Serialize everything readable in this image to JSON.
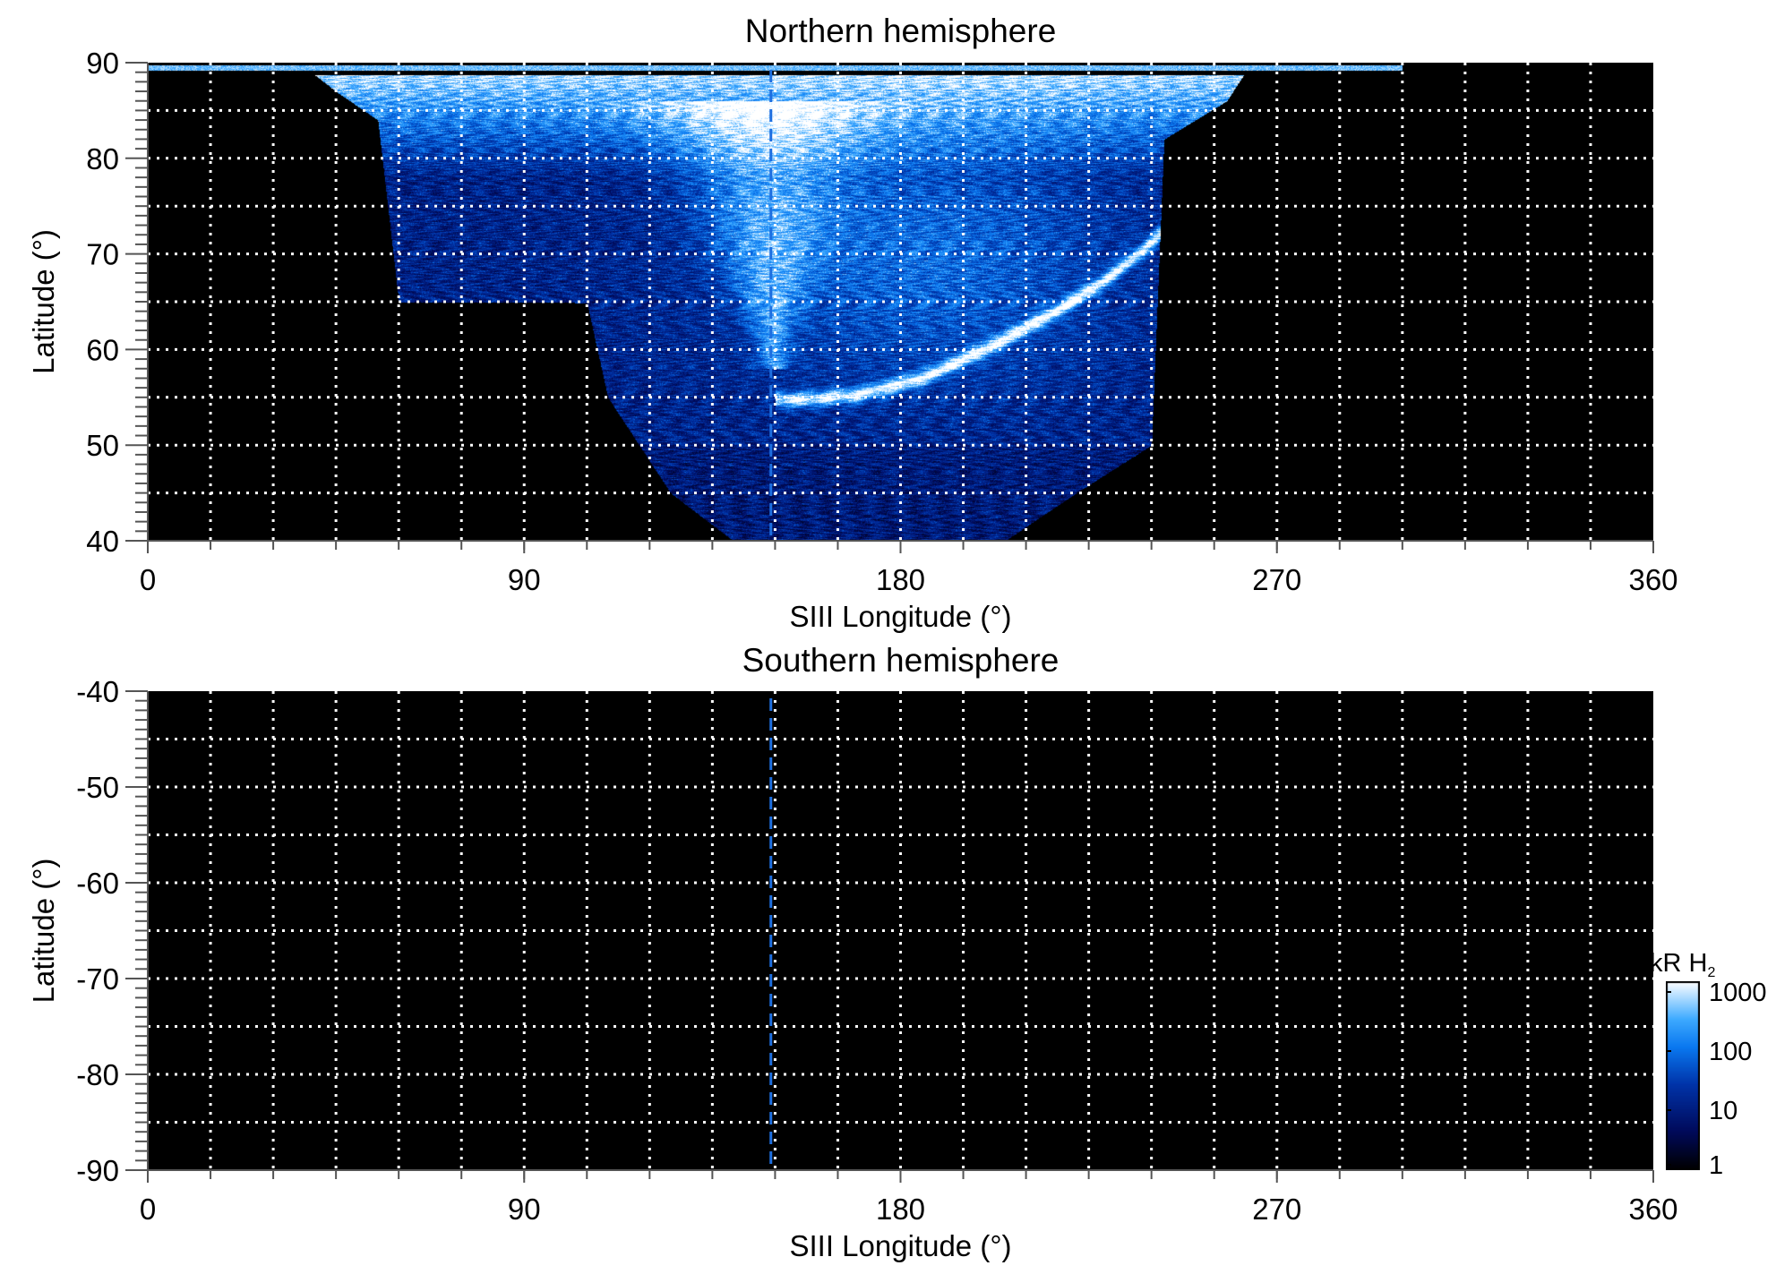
{
  "chart_data": [
    {
      "type": "heatmap",
      "title": "Northern hemisphere",
      "xlabel": "SIII Longitude (°)",
      "ylabel": "Latitude (°)",
      "xlim": [
        0,
        360
      ],
      "ylim": [
        40,
        90
      ],
      "xticks": [
        0,
        90,
        180,
        270,
        360
      ],
      "yticks": [
        40,
        50,
        60,
        70,
        80,
        90
      ],
      "grid": {
        "on": true,
        "style": "dotted",
        "color": "#ffffff",
        "x_step": 15,
        "y_step": 5
      },
      "background": "#000000",
      "reference_line": {
        "longitude": 149,
        "style": "dashed",
        "color": "#1e6fe0"
      },
      "emission": "auroral oval, bright near pole and main arc from ~160°/55° to ~240°/70°"
    },
    {
      "type": "heatmap",
      "title": "Southern hemisphere",
      "xlabel": "SIII Longitude (°)",
      "ylabel": "Latitude (°)",
      "xlim": [
        0,
        360
      ],
      "ylim": [
        -90,
        -40
      ],
      "xticks": [
        0,
        90,
        180,
        270,
        360
      ],
      "yticks": [
        -90,
        -80,
        -70,
        -60,
        -50,
        -40
      ],
      "grid": {
        "on": true,
        "style": "dotted",
        "color": "#ffffff",
        "x_step": 15,
        "y_step": 5
      },
      "background": "#000000",
      "reference_line": {
        "longitude": 149,
        "style": "dashed",
        "color": "#1e6fe0"
      },
      "emission": "none"
    }
  ],
  "colorbar": {
    "label": "kR H",
    "label_subscript": "2",
    "scale": "log",
    "range": [
      1,
      1000
    ],
    "ticks": [
      "1",
      "10",
      "100",
      "1000"
    ],
    "colors": [
      "#000000",
      "#000a5a",
      "#0033a8",
      "#0a78f0",
      "#3eaaff",
      "#ffffff"
    ]
  }
}
